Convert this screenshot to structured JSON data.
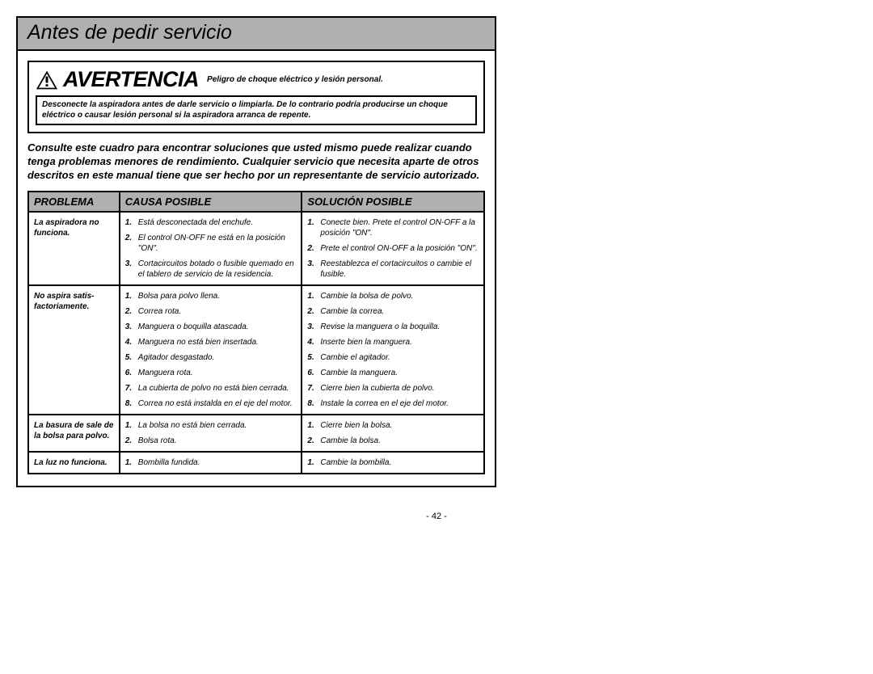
{
  "title": "Antes de pedir servicio",
  "warning": {
    "label": "AVERTENCIA",
    "sub": "Peligro de choque eléctrico y lesión personal.",
    "body": "Desconecte la aspiradora antes de darle servicio o limpiarla. De lo contrario podría producirse un choque eléctrico o causar lesión personal si la aspiradora arranca de repente."
  },
  "intro": "Consulte este cuadro para encontrar soluciones que usted mismo puede realizar cuando tenga problemas menores de rendimiento. Cualquier servicio que necesita aparte de otros descritos en este manual tiene que ser hecho por un representante de servicio autorizado.",
  "columns": [
    "PROBLEMA",
    "CAUSA POSIBLE",
    "SOLUCIÓN POSIBLE"
  ],
  "rows": [
    {
      "problem": "La aspiradora no funciona.",
      "causes": [
        "Está desconectada del enchufe.",
        "El control ON-OFF ne está en la posición \"ON\".",
        "Cortacircuitos botado o fusible quemado en el tablero de servicio de la residencia."
      ],
      "solutions": [
        "Conecte bien. Prete el control ON-OFF a la posición \"ON\".",
        "Prete el control ON-OFF a la posición \"ON\".",
        "Reestablezca el cortacircuitos o cambie el fusible."
      ]
    },
    {
      "problem": "No aspira satis-factoriamente.",
      "causes": [
        "Bolsa para polvo llena.",
        "Correa rota.",
        "Manguera o boquilla atascada.",
        "Manguera no está bien insertada.",
        "Agitador desgastado.",
        "Manguera rota.",
        "La cubierta de polvo no está bien cerrada.",
        "Correa no está instalda en el eje del motor."
      ],
      "solutions": [
        "Cambie la bolsa de polvo.",
        "Cambie la correa.",
        "Revise la manguera o la boquilla.",
        "Inserte bien la manguera.",
        "Cambie el agitador.",
        "Cambie la manguera.",
        "Cierre bien la cubierta de polvo.",
        "Instale la correa en el eje del motor."
      ]
    },
    {
      "problem": "La basura de sale de la bolsa para polvo.",
      "causes": [
        "La bolsa no está bien cerrada.",
        "Bolsa rota."
      ],
      "solutions": [
        "Cierre bien la bolsa.",
        "Cambie la bolsa."
      ]
    },
    {
      "problem": "La luz no funciona.",
      "causes": [
        "Bombilla fundida."
      ],
      "solutions": [
        "Cambie la bombilla."
      ]
    }
  ],
  "pageNumber": "- 42 -"
}
